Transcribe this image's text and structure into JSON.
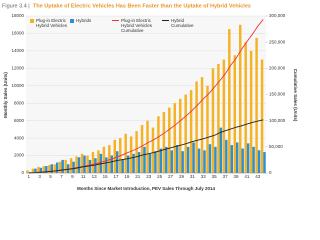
{
  "chart_data": {
    "type": "bar",
    "figure_label": "Figure 3.4 |",
    "title": "The Uptake of Electric Vehicles Has Been Faster than the Uptake of Hybrid Vehicles",
    "x_label": "Months Since Market Introduction, PEV Sales Through July 2014",
    "y_label": "Monthly Sales (Units)",
    "y2_label": "Cumulative Sales (Units)",
    "categories": [
      "1",
      null,
      "3",
      null,
      "5",
      null,
      "7",
      null,
      "9",
      null,
      "11",
      null,
      "13",
      null,
      "15",
      null,
      "17",
      null,
      "19",
      null,
      "21",
      null,
      "23",
      null,
      "25",
      null,
      "27",
      null,
      "29",
      null,
      "31",
      null,
      "33",
      null,
      "35",
      null,
      "37",
      null,
      "39",
      null,
      "41",
      null,
      "43",
      null
    ],
    "ylim": [
      0,
      18000
    ],
    "yticks": [
      0,
      2000,
      4000,
      6000,
      8000,
      10000,
      12000,
      14000,
      16000,
      18000
    ],
    "y2lim": [
      0,
      300000
    ],
    "y2ticks": [
      0,
      {
        "value": 50000,
        "label": "50,000"
      },
      {
        "value": 100000,
        "label": "100,000"
      },
      {
        "value": 150000,
        "label": "150,000"
      },
      {
        "value": 200000,
        "label": "200,000"
      },
      {
        "value": 250000,
        "label": "250,000"
      },
      {
        "value": 300000,
        "label": "300,000"
      }
    ],
    "grid": true,
    "series": [
      {
        "name": "Plug-in Electric Hybrid Vehicles",
        "type": "bar",
        "color": "#f5b324",
        "values": [
          300,
          500,
          700,
          800,
          900,
          1000,
          1300,
          1500,
          1700,
          1900,
          2200,
          2000,
          2400,
          2600,
          3000,
          3200,
          3800,
          4000,
          4500,
          4200,
          4800,
          5500,
          6000,
          5200,
          6500,
          7000,
          7500,
          8000,
          8500,
          9000,
          9500,
          10500,
          11000,
          10000,
          12000,
          12500,
          13000,
          16500,
          13500,
          17000,
          15000,
          14000,
          15500,
          13000
        ]
      },
      {
        "name": "Hybrids",
        "type": "bar",
        "color": "#2e8fd0",
        "values": [
          100,
          500,
          600,
          800,
          1000,
          1200,
          1500,
          1000,
          1300,
          1800,
          2000,
          1500,
          1700,
          2200,
          1800,
          2000,
          2500,
          1600,
          2000,
          2200,
          2400,
          3000,
          2200,
          2500,
          2800,
          3000,
          2600,
          3200,
          2500,
          3000,
          3500,
          2800,
          2600,
          3300,
          3000,
          5200,
          3800,
          3200,
          3500,
          2800,
          3400,
          3000,
          2600,
          2400
        ]
      },
      {
        "name": "Plug-in Electric Hybrid Vehicles Cumulative",
        "type": "line",
        "axis": "y2",
        "color": "#e8363c",
        "values": [
          300,
          800,
          1500,
          2300,
          3200,
          4200,
          5500,
          7000,
          8700,
          10600,
          12800,
          14800,
          17200,
          19800,
          22800,
          26000,
          29800,
          33800,
          38300,
          42500,
          47300,
          52800,
          58800,
          64000,
          70500,
          77500,
          85000,
          93000,
          101500,
          110500,
          120000,
          130500,
          141500,
          151500,
          163500,
          176000,
          189000,
          205500,
          219000,
          236000,
          251000,
          265000,
          280500,
          293500
        ]
      },
      {
        "name": "Hybrid Cumulative",
        "type": "line",
        "axis": "y2",
        "color": "#222222",
        "values": [
          100,
          600,
          1200,
          2000,
          3000,
          4200,
          5700,
          6700,
          8000,
          9800,
          11800,
          13300,
          15000,
          17200,
          19000,
          21000,
          23500,
          25100,
          27100,
          29300,
          31700,
          34700,
          36900,
          39400,
          42200,
          45200,
          47800,
          51000,
          53500,
          56500,
          60000,
          62800,
          65400,
          68700,
          71700,
          76900,
          80700,
          83900,
          87400,
          90200,
          93600,
          96600,
          99200,
          101600
        ]
      }
    ]
  }
}
